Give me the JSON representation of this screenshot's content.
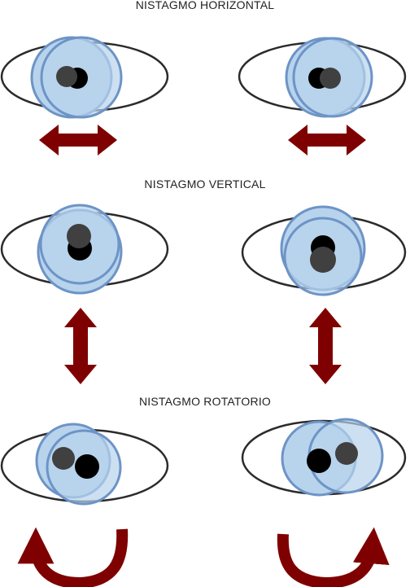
{
  "sections": [
    {
      "title": "NISTAGMO HORIZONTAL"
    },
    {
      "title": "NISTAGMO VERTICAL"
    },
    {
      "title": "NISTAGMO ROTATORIO"
    }
  ],
  "colors": {
    "eye_outline": "#2b2b2b",
    "iris_fill": "#b8d3ec",
    "iris_stroke": "#6d94c6",
    "pupil_black": "#000000",
    "pupil_gray": "#404040",
    "arrow": "#7f0000"
  }
}
